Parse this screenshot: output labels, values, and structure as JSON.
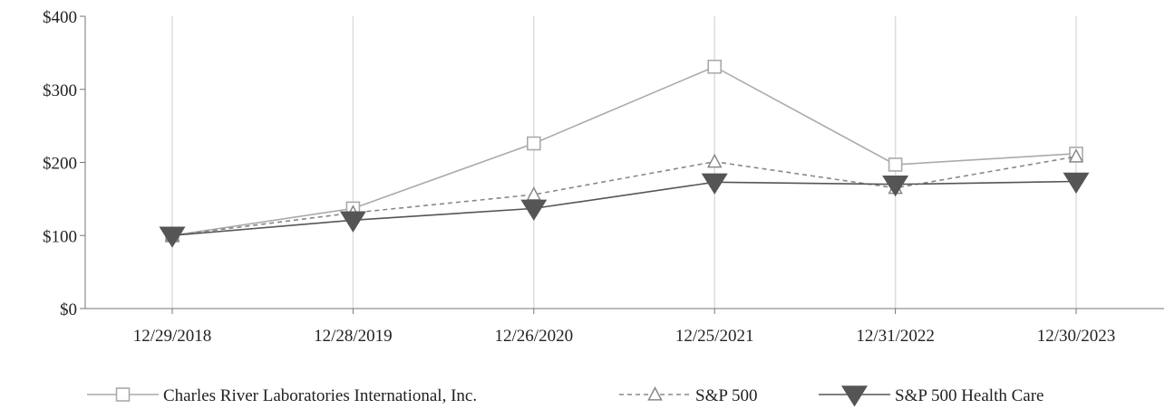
{
  "chart_data": {
    "type": "line",
    "title": "",
    "xlabel": "",
    "ylabel": "",
    "categories": [
      "12/29/2018",
      "12/28/2019",
      "12/26/2020",
      "12/25/2021",
      "12/31/2022",
      "12/30/2023"
    ],
    "ylim": [
      0,
      400
    ],
    "yticks": [
      0,
      100,
      200,
      300,
      400
    ],
    "ytick_labels": [
      "$0",
      "$100",
      "$200",
      "$300",
      "$400"
    ],
    "grid": "vertical",
    "legend_position": "bottom",
    "series": [
      {
        "name": "Charles River Laboratories International, Inc.",
        "values": [
          100,
          137,
          226,
          331,
          197,
          212
        ],
        "color": "#aaaaaa",
        "marker": "square",
        "line_style": "solid"
      },
      {
        "name": "S&P 500",
        "values": [
          100,
          131,
          156,
          201,
          165,
          208
        ],
        "color": "#888888",
        "marker": "triangle-up",
        "line_style": "dashed"
      },
      {
        "name": "S&P 500 Health Care",
        "values": [
          100,
          121,
          137,
          173,
          170,
          174
        ],
        "color": "#555555",
        "marker": "triangle-down-filled",
        "line_style": "solid"
      }
    ]
  }
}
